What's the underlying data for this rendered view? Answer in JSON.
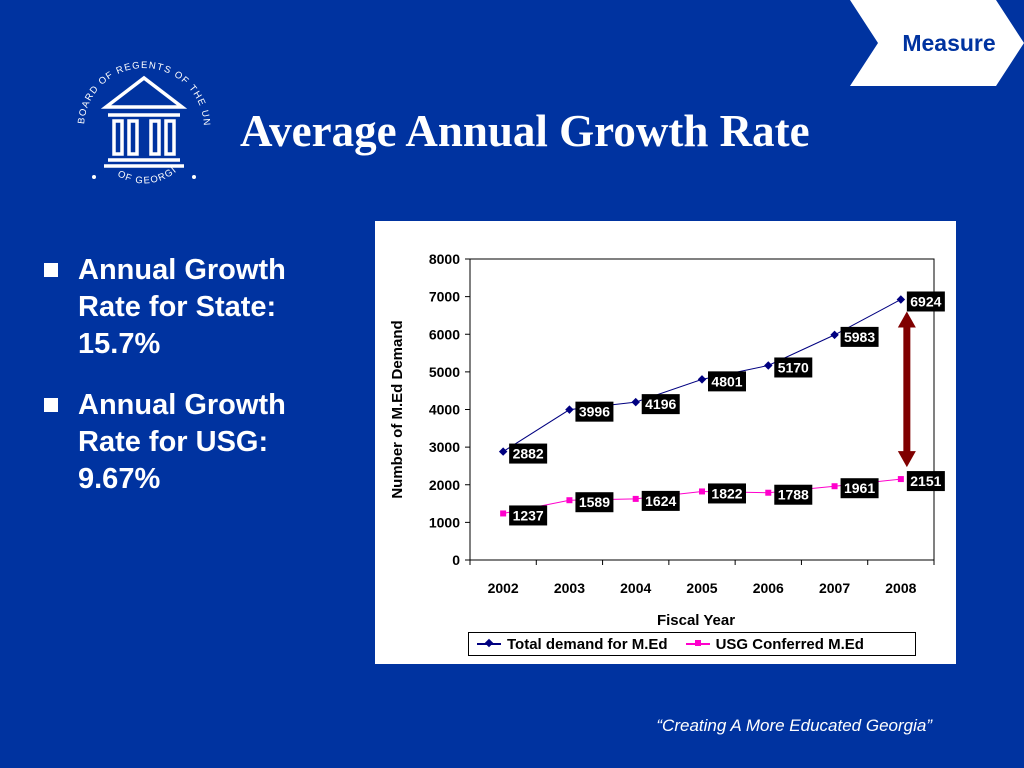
{
  "header": {
    "tab_label": "Measure",
    "title": "Average Annual Growth Rate"
  },
  "logo": {
    "text_top": "BOARD OF REGENTS OF THE UNIVERSITY SYSTEM",
    "text_bottom": "OF GEORGIA",
    "icon": "columns-building-icon"
  },
  "bullets": [
    {
      "text": "Annual Growth\nRate for State:\n15.7%"
    },
    {
      "text": "Annual Growth\nRate for USG:\n9.67%"
    }
  ],
  "footer": {
    "tagline": "“Creating A More Educated Georgia”"
  },
  "colors": {
    "background": "#0033a0",
    "series1": "#000080",
    "series2": "#ff00cc",
    "arrow": "#800000"
  },
  "chart_data": {
    "type": "line",
    "x": [
      "2002",
      "2003",
      "2004",
      "2005",
      "2006",
      "2007",
      "2008"
    ],
    "xlabel": "Fiscal Year",
    "ylabel": "Number of M.Ed Demand",
    "ylim": [
      0,
      8000
    ],
    "yticks": [
      "0",
      "1000",
      "2000",
      "3000",
      "4000",
      "5000",
      "6000",
      "7000",
      "8000"
    ],
    "grid": false,
    "legend": "bottom",
    "series": [
      {
        "name": "Total demand for M.Ed",
        "values": [
          2882,
          3996,
          4196,
          4801,
          5170,
          5983,
          6924
        ]
      },
      {
        "name": "USG Conferred M.Ed",
        "values": [
          1237,
          1589,
          1624,
          1822,
          1788,
          1961,
          2151
        ]
      }
    ]
  }
}
